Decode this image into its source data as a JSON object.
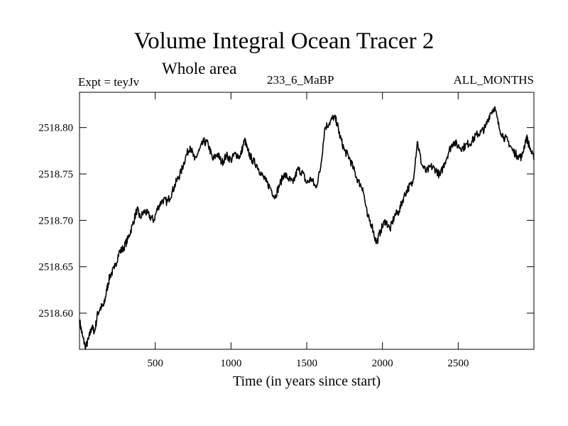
{
  "chart_data": {
    "type": "line",
    "title": "Volume Integral Ocean Tracer 2",
    "subtitle": "Whole area",
    "top_left_label": "Expt = teyJv",
    "top_center_label": "233_6_MaBP",
    "top_right_label": "ALL_MONTHS",
    "xlabel": "Time (in years since start)",
    "ylabel": "",
    "xlim": [
      0,
      3000
    ],
    "ylim": [
      2518.561,
      2518.838
    ],
    "xticks": [
      500,
      1000,
      1500,
      2000,
      2500
    ],
    "xtick_labels": [
      "500",
      "1000",
      "1500",
      "2000",
      "2500"
    ],
    "yticks": [
      2518.6,
      2518.65,
      2518.7,
      2518.75,
      2518.8
    ],
    "ytick_labels": [
      "2518.60",
      "2518.65",
      "2518.70",
      "2518.75",
      "2518.80"
    ],
    "grid": false,
    "legend": "none",
    "line_color": "#000000",
    "series": [
      {
        "x": [
          0,
          20,
          40,
          60,
          80,
          100,
          120,
          140,
          160,
          180,
          200,
          230,
          260,
          290,
          320,
          350,
          380,
          400,
          430,
          460,
          490,
          520,
          550,
          580,
          610,
          640,
          670,
          700,
          730,
          760,
          790,
          820,
          850,
          880,
          910,
          940,
          970,
          1000,
          1030,
          1060,
          1090,
          1110,
          1140,
          1170,
          1200,
          1230,
          1260,
          1290,
          1320,
          1350,
          1380,
          1410,
          1440,
          1470,
          1500,
          1530,
          1560,
          1590,
          1620,
          1650,
          1680,
          1700,
          1720,
          1750,
          1780,
          1810,
          1840,
          1870,
          1900,
          1930,
          1960,
          1990,
          2020,
          2050,
          2080,
          2110,
          2140,
          2170,
          2200,
          2230,
          2260,
          2290,
          2320,
          2350,
          2380,
          2410,
          2440,
          2470,
          2500,
          2530,
          2560,
          2590,
          2620,
          2650,
          2680,
          2710,
          2740,
          2770,
          2800,
          2830,
          2860,
          2890,
          2920,
          2950,
          2970,
          3000
        ],
        "y": [
          2518.592,
          2518.575,
          2518.563,
          2518.572,
          2518.585,
          2518.58,
          2518.6,
          2518.606,
          2518.608,
          2518.625,
          2518.64,
          2518.648,
          2518.665,
          2518.67,
          2518.68,
          2518.695,
          2518.712,
          2518.703,
          2518.71,
          2518.705,
          2518.7,
          2518.715,
          2518.722,
          2518.72,
          2518.73,
          2518.742,
          2518.752,
          2518.768,
          2518.78,
          2518.765,
          2518.775,
          2518.785,
          2518.782,
          2518.765,
          2518.772,
          2518.762,
          2518.77,
          2518.765,
          2518.772,
          2518.768,
          2518.787,
          2518.775,
          2518.765,
          2518.76,
          2518.75,
          2518.742,
          2518.735,
          2518.725,
          2518.738,
          2518.75,
          2518.745,
          2518.74,
          2518.755,
          2518.752,
          2518.74,
          2518.745,
          2518.735,
          2518.755,
          2518.8,
          2518.805,
          2518.812,
          2518.805,
          2518.79,
          2518.775,
          2518.768,
          2518.755,
          2518.742,
          2518.735,
          2518.705,
          2518.695,
          2518.675,
          2518.69,
          2518.7,
          2518.69,
          2518.705,
          2518.71,
          2518.725,
          2518.735,
          2518.74,
          2518.785,
          2518.76,
          2518.752,
          2518.758,
          2518.755,
          2518.748,
          2518.762,
          2518.775,
          2518.785,
          2518.78,
          2518.778,
          2518.782,
          2518.785,
          2518.792,
          2518.795,
          2518.8,
          2518.815,
          2518.822,
          2518.8,
          2518.79,
          2518.785,
          2518.775,
          2518.77,
          2518.768,
          2518.79,
          2518.78,
          2518.765
        ]
      }
    ]
  }
}
